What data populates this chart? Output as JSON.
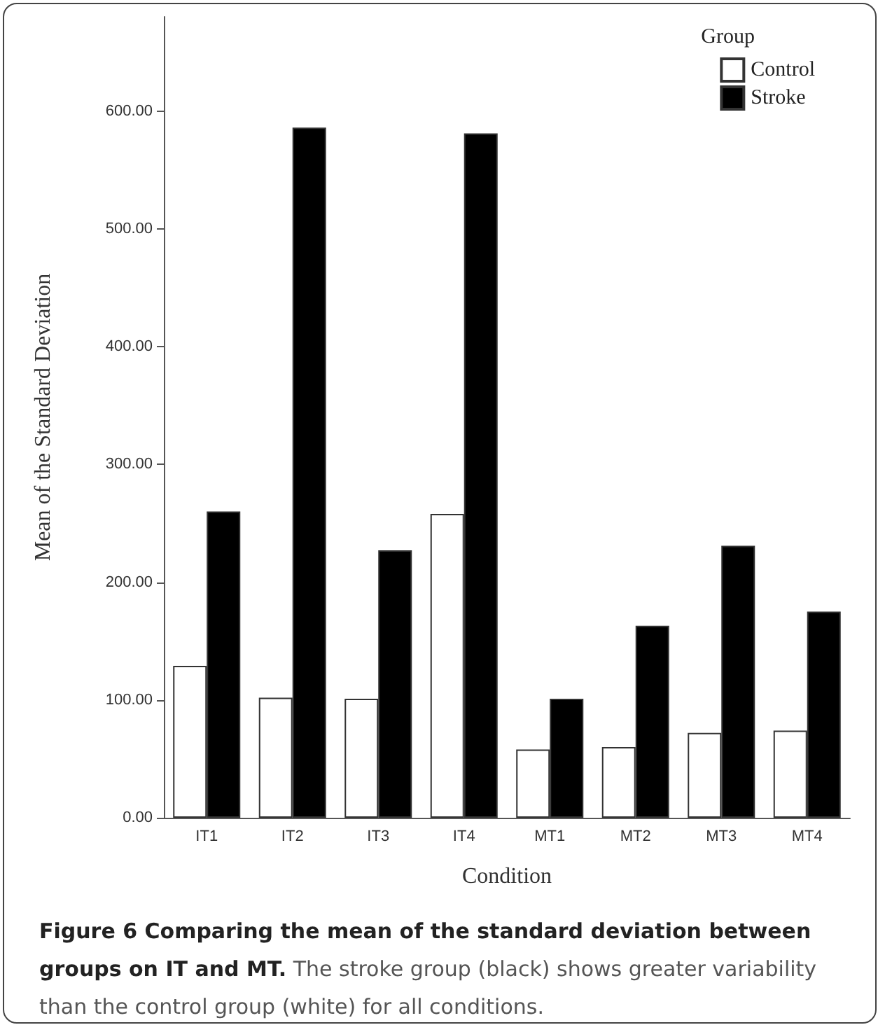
{
  "chart_data": {
    "type": "bar",
    "title": "Figure 6 Comparing the mean of the standard deviation between groups on IT and MT.",
    "annotations": [
      "The stroke group (black) shows greater variability than the control group (white) for all conditions."
    ],
    "xlabel": "Condition",
    "ylabel": "Mean of the Standard Deviation",
    "legend_title": "Group",
    "legend": "top right",
    "grid": false,
    "categories": [
      "IT1",
      "IT2",
      "IT3",
      "IT4",
      "MT1",
      "MT2",
      "MT3",
      "MT4"
    ],
    "series": [
      {
        "name": "Control",
        "color": "#ffffff",
        "values": [
          129,
          102,
          101,
          258,
          58,
          60,
          72,
          74
        ]
      },
      {
        "name": "Stroke",
        "color": "#000000",
        "values": [
          260,
          586,
          227,
          581,
          101,
          163,
          231,
          175
        ]
      }
    ],
    "ylim": [
      0,
      680
    ],
    "yticks": [
      {
        "value": 0,
        "label": "0.00"
      },
      {
        "value": 100,
        "label": "100.00"
      },
      {
        "value": 200,
        "label": "200.00"
      },
      {
        "value": 300,
        "label": "300.00"
      },
      {
        "value": 400,
        "label": "400.00"
      },
      {
        "value": 500,
        "label": "500.00"
      },
      {
        "value": 600,
        "label": "600.00"
      }
    ]
  }
}
